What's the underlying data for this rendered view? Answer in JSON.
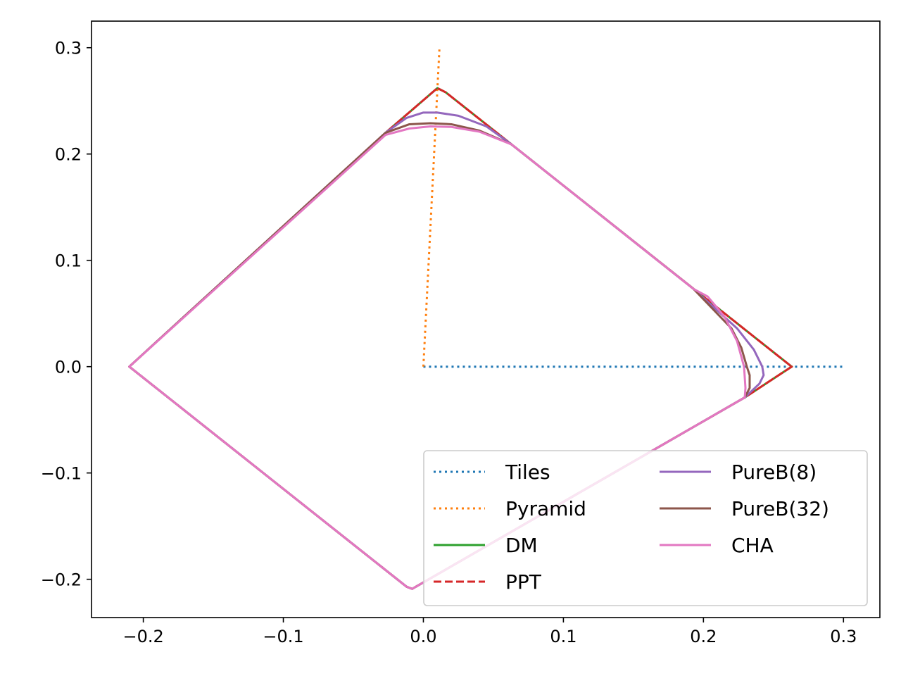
{
  "chart_data": {
    "type": "line",
    "title": "",
    "xlabel": "",
    "ylabel": "",
    "xlim": [
      -0.237,
      0.326
    ],
    "ylim": [
      -0.236,
      0.325
    ],
    "x_ticks": [
      {
        "value": -0.2,
        "label": "−0.2"
      },
      {
        "value": -0.1,
        "label": "−0.1"
      },
      {
        "value": 0.0,
        "label": "0.0"
      },
      {
        "value": 0.1,
        "label": "0.1"
      },
      {
        "value": 0.2,
        "label": "0.2"
      },
      {
        "value": 0.3,
        "label": "0.3"
      }
    ],
    "y_ticks": [
      {
        "value": -0.2,
        "label": "−0.2"
      },
      {
        "value": -0.1,
        "label": "−0.1"
      },
      {
        "value": 0.0,
        "label": "0.0"
      },
      {
        "value": 0.1,
        "label": "0.1"
      },
      {
        "value": 0.2,
        "label": "0.2"
      },
      {
        "value": 0.3,
        "label": "0.3"
      }
    ],
    "grid": false,
    "legend": {
      "position": "bottom-right",
      "columns": 2
    },
    "series": [
      {
        "name": "Tiles",
        "color": "#1f77b4",
        "style": "dotted",
        "points": [
          [
            0.0,
            0.0
          ],
          [
            0.3,
            0.0
          ]
        ]
      },
      {
        "name": "Pyramid",
        "color": "#ff7f0e",
        "style": "dotted",
        "points": [
          [
            0.0,
            0.0
          ],
          [
            0.0115,
            0.3
          ]
        ]
      },
      {
        "name": "DM",
        "color": "#2ca02c",
        "style": "solid",
        "points": [
          [
            0.263,
            0.0
          ],
          [
            0.2295,
            -0.029
          ],
          [
            -0.008,
            -0.209
          ],
          [
            -0.012,
            -0.207
          ],
          [
            -0.21,
            0.0
          ],
          [
            -0.027,
            0.22
          ],
          [
            0.01,
            0.262
          ],
          [
            0.016,
            0.258
          ],
          [
            0.063,
            0.209
          ],
          [
            0.263,
            0.0
          ]
        ]
      },
      {
        "name": "PPT",
        "color": "#d62728",
        "style": "dashed",
        "points": [
          [
            0.263,
            0.0
          ],
          [
            0.2295,
            -0.029
          ],
          [
            -0.008,
            -0.209
          ],
          [
            -0.012,
            -0.207
          ],
          [
            -0.21,
            0.0
          ],
          [
            -0.027,
            0.22
          ],
          [
            0.01,
            0.262
          ],
          [
            0.016,
            0.258
          ],
          [
            0.063,
            0.209
          ],
          [
            0.263,
            0.0
          ]
        ]
      },
      {
        "name": "PureB(8)",
        "color": "#9467bd",
        "style": "solid",
        "points": [
          [
            0.2295,
            -0.029
          ],
          [
            0.24,
            -0.016
          ],
          [
            0.243,
            -0.008
          ],
          [
            0.242,
            0.0
          ],
          [
            0.236,
            0.016
          ],
          [
            0.224,
            0.036
          ],
          [
            0.193,
            0.073
          ],
          [
            0.063,
            0.209
          ],
          [
            0.045,
            0.226
          ],
          [
            0.025,
            0.236
          ],
          [
            0.01,
            0.239
          ],
          [
            0.0,
            0.239
          ],
          [
            -0.012,
            0.234
          ],
          [
            -0.027,
            0.22
          ],
          [
            -0.21,
            0.0
          ],
          [
            -0.012,
            -0.207
          ],
          [
            -0.008,
            -0.209
          ],
          [
            0.2295,
            -0.029
          ]
        ]
      },
      {
        "name": "PureB(32)",
        "color": "#8c564b",
        "style": "solid",
        "points": [
          [
            0.2295,
            -0.029
          ],
          [
            0.233,
            -0.02
          ],
          [
            0.233,
            -0.008
          ],
          [
            0.231,
            0.0
          ],
          [
            0.227,
            0.018
          ],
          [
            0.22,
            0.036
          ],
          [
            0.193,
            0.073
          ],
          [
            0.063,
            0.209
          ],
          [
            0.04,
            0.222
          ],
          [
            0.02,
            0.228
          ],
          [
            0.005,
            0.229
          ],
          [
            -0.01,
            0.228
          ],
          [
            -0.027,
            0.22
          ],
          [
            -0.21,
            0.0
          ],
          [
            -0.012,
            -0.207
          ],
          [
            -0.008,
            -0.209
          ],
          [
            0.2295,
            -0.029
          ]
        ]
      },
      {
        "name": "CHA",
        "color": "#e377c2",
        "style": "solid",
        "points": [
          [
            0.2295,
            -0.029
          ],
          [
            0.23,
            -0.02
          ],
          [
            0.229,
            0.0
          ],
          [
            0.224,
            0.024
          ],
          [
            0.215,
            0.047
          ],
          [
            0.203,
            0.066
          ],
          [
            0.193,
            0.073
          ],
          [
            0.063,
            0.209
          ],
          [
            0.04,
            0.221
          ],
          [
            0.02,
            0.2255
          ],
          [
            0.005,
            0.226
          ],
          [
            -0.01,
            0.224
          ],
          [
            -0.027,
            0.218
          ],
          [
            -0.21,
            0.0
          ],
          [
            -0.012,
            -0.207
          ],
          [
            -0.008,
            -0.209
          ],
          [
            0.2295,
            -0.029
          ]
        ]
      }
    ]
  }
}
